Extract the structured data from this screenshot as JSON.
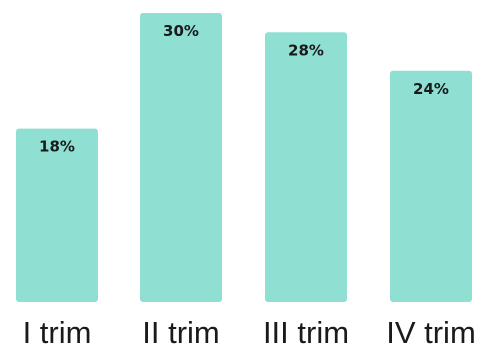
{
  "chart_data": {
    "type": "bar",
    "categories": [
      "I trim",
      "II trim",
      "III trim",
      "IV trim"
    ],
    "values": [
      18,
      30,
      28,
      24
    ],
    "value_labels": [
      "18%",
      "30%",
      "28%",
      "24%"
    ],
    "ylim": [
      0,
      30
    ],
    "grid": false,
    "legend": "none",
    "bar_color": "#8fe0d3",
    "text_color": "#1a1a1a"
  }
}
